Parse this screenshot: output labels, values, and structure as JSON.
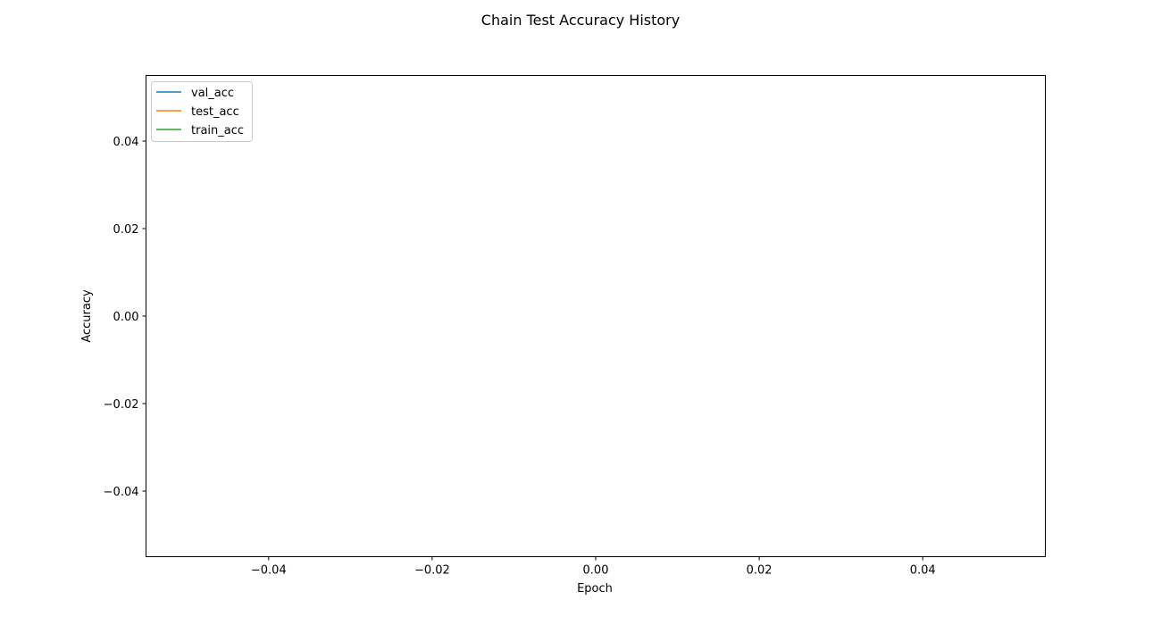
{
  "chart_data": {
    "type": "line",
    "title": "Chain Test Accuracy History",
    "xlabel": "Epoch",
    "ylabel": "Accuracy",
    "xlim": [
      -0.055,
      0.055
    ],
    "ylim": [
      -0.055,
      0.055
    ],
    "xticks": [
      -0.04,
      -0.02,
      0.0,
      0.02,
      0.04
    ],
    "yticks": [
      -0.04,
      -0.02,
      0.0,
      0.02,
      0.04
    ],
    "xtick_labels": [
      "−0.04",
      "−0.02",
      "0.00",
      "0.02",
      "0.04"
    ],
    "ytick_labels": [
      "−0.04",
      "−0.02",
      "0.00",
      "0.02",
      "0.04"
    ],
    "grid": false,
    "legend_position": "upper-left",
    "series": [
      {
        "name": "val_acc",
        "color": "#1f77b4",
        "x": [],
        "y": []
      },
      {
        "name": "test_acc",
        "color": "#ff7f0e",
        "x": [],
        "y": []
      },
      {
        "name": "train_acc",
        "color": "#2ca02c",
        "x": [],
        "y": []
      }
    ]
  }
}
